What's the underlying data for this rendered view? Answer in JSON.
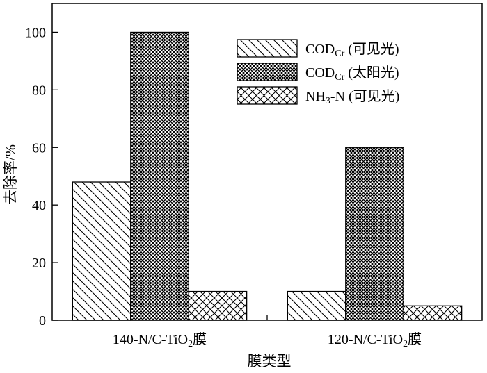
{
  "chart_data": {
    "type": "bar",
    "title": "",
    "xlabel": "膜类型",
    "ylabel": "去除率/%",
    "ylim": [
      0,
      110
    ],
    "yticks": [
      0,
      20,
      40,
      60,
      80,
      100
    ],
    "categories": [
      "140-N/C-TiO₂膜",
      "120-N/C-TiO₂膜"
    ],
    "series": [
      {
        "name": "COD_Cr (可见光)",
        "values": [
          48,
          10
        ],
        "pattern": "diagonal-hatch"
      },
      {
        "name": "COD_Cr (太阳光)",
        "values": [
          100,
          60
        ],
        "pattern": "dense-crosshatch"
      },
      {
        "name": "NH₃-N (可见光)",
        "values": [
          10,
          5
        ],
        "pattern": "crosshatch"
      }
    ],
    "legend": {
      "position": "top-right",
      "entries": [
        {
          "main": "COD",
          "sub": "Cr",
          "suffix": " (可见光)"
        },
        {
          "main": "COD",
          "sub": "Cr",
          "suffix": " (太阳光)"
        },
        {
          "main": "NH",
          "sub": "3",
          "suffix": "-N (可见光)"
        }
      ]
    },
    "category_labels": [
      {
        "main": "140-N/C-TiO",
        "sub": "2",
        "suffix": "膜"
      },
      {
        "main": "120-N/C-TiO",
        "sub": "2",
        "suffix": "膜"
      }
    ],
    "grid": false,
    "colors": {
      "bar_fill": "#ffffff",
      "stroke": "#000000"
    }
  }
}
